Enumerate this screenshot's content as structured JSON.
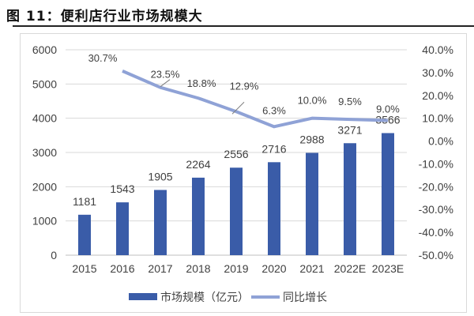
{
  "title": "图 11：便利店行业市场规模大",
  "chart_data": {
    "type": "bar",
    "categories": [
      "2015",
      "2016",
      "2017",
      "2018",
      "2019",
      "2020",
      "2021",
      "2022E",
      "2023E"
    ],
    "series": [
      {
        "name": "市场规模（亿元）",
        "type": "bar",
        "axis": "left",
        "values": [
          1181,
          1543,
          1905,
          2264,
          2556,
          2716,
          2988,
          3271,
          3566
        ],
        "labels": [
          "1181",
          "1543",
          "1905",
          "2264",
          "2556",
          "2716",
          "2988",
          "3271",
          "3566"
        ],
        "color": "#3a5ca8"
      },
      {
        "name": "同比增长",
        "type": "line",
        "axis": "right",
        "values": [
          null,
          30.7,
          23.5,
          18.8,
          12.9,
          6.3,
          10.0,
          9.5,
          9.0
        ],
        "labels": [
          "",
          "30.7%",
          "23.5%",
          "18.8%",
          "12.9%",
          "6.3%",
          "10.0%",
          "9.5%",
          "9.0%"
        ],
        "color": "#8fa2d6"
      }
    ],
    "yleft": {
      "min": 0,
      "max": 6000,
      "ticks": [
        "0",
        "1000",
        "2000",
        "3000",
        "4000",
        "5000",
        "6000"
      ]
    },
    "yright": {
      "min": -50,
      "max": 40,
      "ticks": [
        "-50.0%",
        "-40.0%",
        "-30.0%",
        "-20.0%",
        "-10.0%",
        "0.0%",
        "10.0%",
        "20.0%",
        "30.0%",
        "40.0%"
      ]
    },
    "grid": true,
    "legend": "bottom"
  }
}
